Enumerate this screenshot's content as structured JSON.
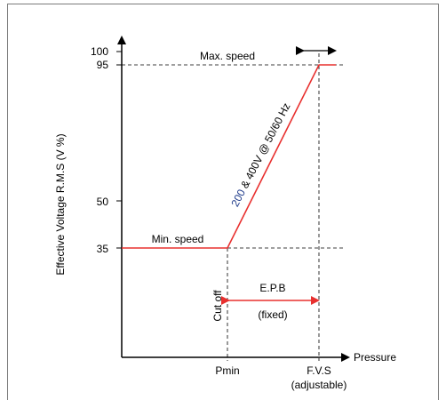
{
  "diagram": {
    "y_axis_label": "Effective Voltage R.M.S (V %)",
    "x_axis_label": "Pressure",
    "y_ticks": [
      "100",
      "95",
      "50",
      "35"
    ],
    "x_ticks": {
      "pmin": "Pmin",
      "fvs": "F.V.S",
      "fvs_sub": "(adjustable)"
    },
    "labels": {
      "max_speed": "Max. speed",
      "min_speed": "Min. speed",
      "voltage_prefix": "200",
      "voltage_rest": " & 400V @ 50/60 Hz",
      "cut_off": "Cut off",
      "epb": "E.P.B",
      "fixed": "(fixed)"
    },
    "colors": {
      "curve": "#e8302f",
      "axis": "#000000",
      "dashed": "#000000",
      "voltage_accent": "#1f3b8a"
    }
  }
}
